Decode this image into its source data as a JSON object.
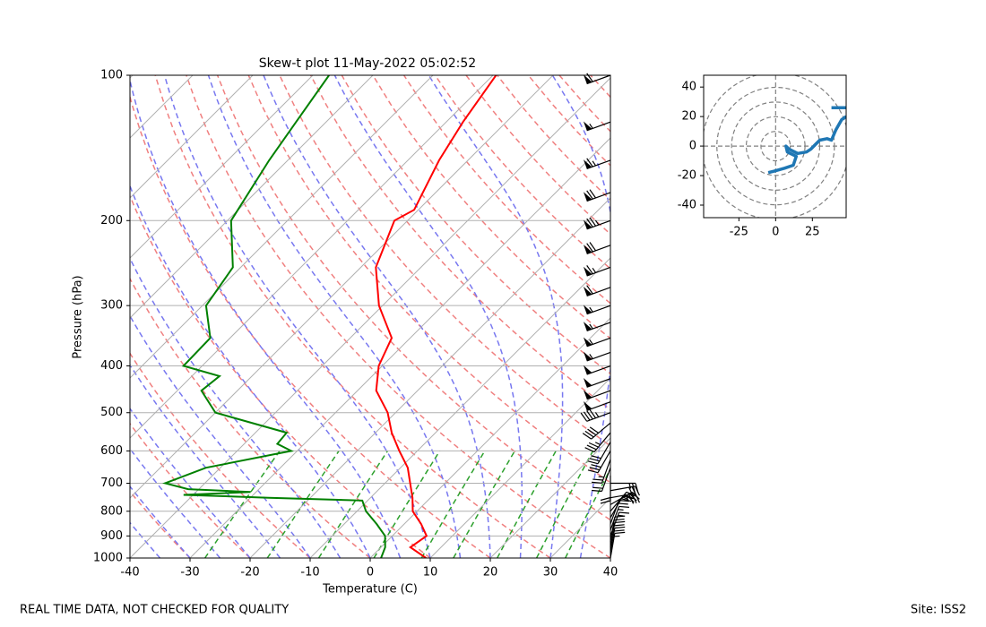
{
  "chart_data": [
    {
      "type": "skewt",
      "title": "Skew-t plot 11-May-2022 05:02:52",
      "x_label": "Temperature (C)",
      "y_label": "Pressure (hPa)",
      "xlim": [
        -40,
        40
      ],
      "xticks": [
        -40,
        -30,
        -20,
        -10,
        0,
        10,
        20,
        30,
        40
      ],
      "ylim": [
        1000,
        100
      ],
      "yticks": [
        100,
        200,
        300,
        400,
        500,
        600,
        700,
        800,
        900,
        1000
      ],
      "log_scale": true,
      "grid": true,
      "series": [
        {
          "color": "#ff0000",
          "y": [
            1000,
            950,
            900,
            850,
            800,
            750,
            700,
            650,
            600,
            550,
            500,
            450,
            400,
            350,
            300,
            250,
            200,
            190,
            150,
            125,
            100
          ],
          "values": [
            9.3,
            4.9,
            5.7,
            2.8,
            -0.7,
            -3,
            -5.8,
            -8.8,
            -13,
            -17.3,
            -21.3,
            -26.9,
            -30.6,
            -33.1,
            -40.6,
            -47.5,
            -52.2,
            -50.7,
            -54.8,
            -57.2,
            -59.5
          ]
        },
        {
          "color": "#008000",
          "y": [
            1000,
            950,
            900,
            850,
            800,
            760,
            750,
            740,
            730,
            720,
            700,
            650,
            600,
            580,
            550,
            500,
            450,
            420,
            400,
            350,
            300,
            250,
            200,
            150,
            125,
            100
          ],
          "values": [
            1.8,
            0.7,
            -1.2,
            -4.6,
            -8.5,
            -10.9,
            -26.9,
            -41.6,
            -30.9,
            -41.8,
            -46.6,
            -42.4,
            -31,
            -34.5,
            -34.8,
            -50,
            -56,
            -55.4,
            -63.1,
            -63.3,
            -69.4,
            -71.3,
            -79.4,
            -83.1,
            -85,
            -87.3
          ]
        }
      ],
      "barbs": {
        "color": "#000000",
        "pressure": [
          100,
          125,
          150,
          175,
          200,
          225,
          250,
          275,
          300,
          325,
          350,
          375,
          400,
          425,
          450,
          475,
          500,
          525,
          550,
          575,
          600,
          625,
          650,
          675,
          700,
          725,
          750,
          775,
          800,
          825,
          850,
          875,
          900,
          925,
          950,
          975,
          1000
        ],
        "speed": [
          60,
          55,
          65,
          70,
          75,
          70,
          65,
          60,
          55,
          55,
          55,
          55,
          50,
          50,
          50,
          50,
          45,
          40,
          35,
          30,
          30,
          25,
          20,
          20,
          25,
          30,
          35,
          30,
          25,
          20,
          20,
          15,
          15,
          20,
          20,
          20,
          15
        ],
        "direction": [
          250,
          250,
          250,
          250,
          250,
          250,
          250,
          250,
          250,
          250,
          250,
          250,
          250,
          250,
          250,
          250,
          250,
          230,
          220,
          210,
          210,
          200,
          200,
          180,
          90,
          80,
          80,
          60,
          40,
          30,
          20,
          20,
          20,
          10,
          10,
          10,
          10
        ]
      }
    },
    {
      "type": "hodograph",
      "xlim": [
        -49,
        48
      ],
      "ylim": [
        -48.5,
        48
      ],
      "xticks": [
        -25,
        0,
        25
      ],
      "yticks": [
        -40,
        -20,
        0,
        20,
        40
      ],
      "grid": true,
      "series": [
        {
          "color": "#1f77b4",
          "x": [
            -5,
            -1,
            6,
            12,
            14,
            8,
            7,
            9,
            15,
            21,
            24,
            27,
            30,
            35,
            38,
            41,
            45,
            48,
            null,
            38,
            48
          ],
          "values": [
            -18,
            -17,
            -15,
            -13,
            -7,
            -4,
            0,
            -2,
            -5,
            -4,
            -2,
            1,
            4,
            5,
            4,
            11,
            18,
            20,
            null,
            26,
            26
          ]
        }
      ]
    }
  ],
  "footer": {
    "left": "REAL TIME DATA, NOT CHECKED FOR QUALITY",
    "right": "Site: ISS2"
  }
}
